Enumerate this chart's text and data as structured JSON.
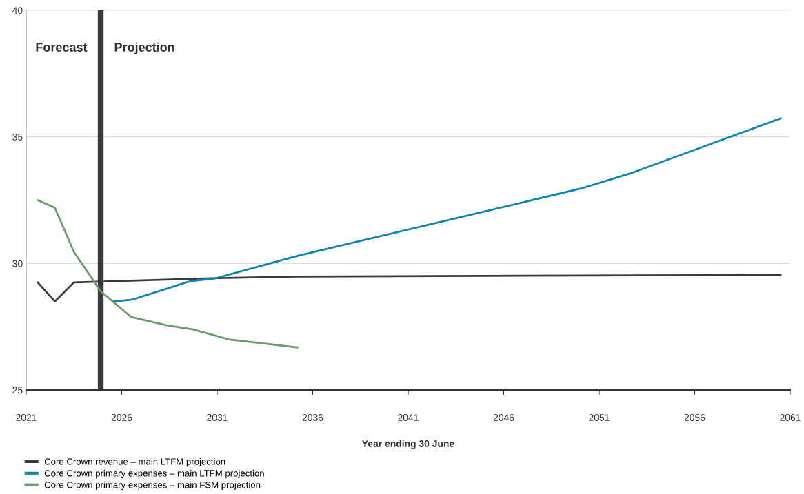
{
  "chart_data": {
    "type": "line",
    "xlabel": "Year ending 30 June",
    "xlim": [
      2021,
      2061
    ],
    "xticks": [
      2021,
      2026,
      2031,
      2036,
      2041,
      2046,
      2051,
      2056,
      2061
    ],
    "ylim": [
      25,
      40
    ],
    "yticks": [
      25,
      30,
      35,
      40
    ],
    "grid": "y",
    "legend": "bottom left",
    "marker": "none",
    "line_style": "solid",
    "ref_lines": [
      {
        "axis": "x",
        "value": 2024.9,
        "color": "#3a3a3a"
      }
    ],
    "annotations": [
      "Forecast",
      "Projection"
    ],
    "series": [
      {
        "name": "Core Crown revenue – main LTFM projection",
        "color": "#3a3a3a",
        "x": [
          2021.6,
          2022.5,
          2023.5,
          2031.0,
          2035.2,
          2060.5
        ],
        "values": [
          29.25,
          28.5,
          29.25,
          29.42,
          29.48,
          29.55
        ]
      },
      {
        "name": "Core Crown primary expenses – main LTFM projection",
        "color": "#0a84b0",
        "x": [
          2025.6,
          2026.5,
          2029.6,
          2030.9,
          2035.2,
          2050.0,
          2052.6,
          2060.5
        ],
        "values": [
          28.5,
          28.56,
          29.3,
          29.41,
          30.3,
          32.95,
          33.55,
          35.73
        ]
      },
      {
        "name": "Core Crown primary expenses – main FSM projection",
        "color": "#6a9a6c",
        "x": [
          2021.6,
          2022.5,
          2023.5,
          2024.9,
          2026.5,
          2028.4,
          2029.7,
          2031.6,
          2035.2
        ],
        "values": [
          32.5,
          32.2,
          30.45,
          28.9,
          27.88,
          27.55,
          27.4,
          27.0,
          26.68
        ]
      }
    ]
  }
}
